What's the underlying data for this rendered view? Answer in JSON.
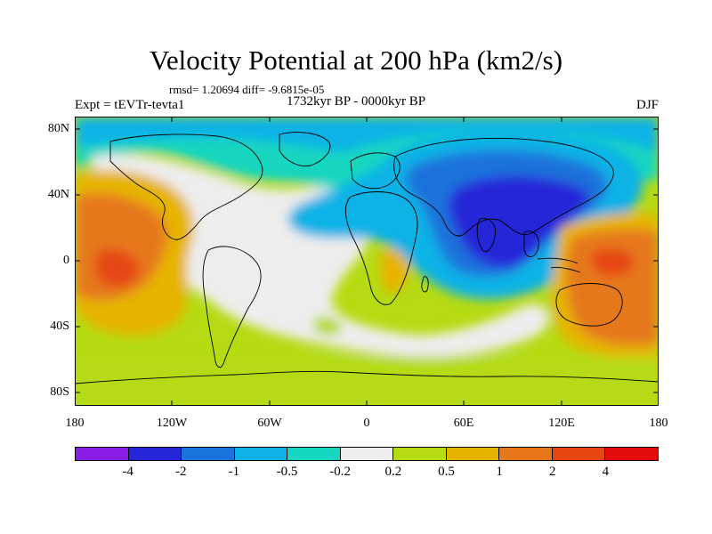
{
  "title": "Velocity Potential at 200 hPa (km2/s)",
  "stats": "rmsd= 1.20694 diff= -9.6815e-05",
  "expt": "Expt = tEVTr-tevta1",
  "period": "1732kyr BP - 0000kyr BP",
  "season": "DJF",
  "lat_labels": [
    "80N",
    "40N",
    "0",
    "40S",
    "80S"
  ],
  "lon_labels": [
    "180",
    "120W",
    "60W",
    "0",
    "60E",
    "120E",
    "180"
  ],
  "colorbar": {
    "labels": [
      "-4",
      "-2",
      "-1",
      "-0.5",
      "-0.2",
      "0.2",
      "0.5",
      "1",
      "2",
      "4"
    ],
    "colors": [
      "#8a1ee6",
      "#2626d9",
      "#1a72dc",
      "#0fb2e6",
      "#15d6c0",
      "#ededed",
      "#b5db12",
      "#e6b400",
      "#e6781a",
      "#e64612",
      "#e60c0c"
    ]
  }
}
